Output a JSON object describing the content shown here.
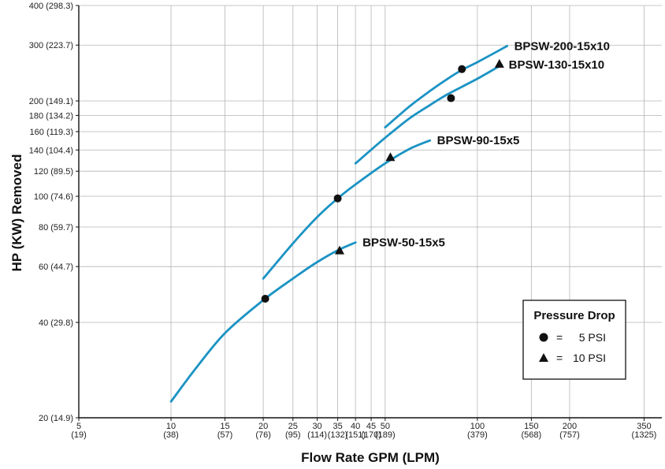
{
  "chart_data": {
    "type": "line",
    "xlabel": "Flow Rate GPM (LPM)",
    "ylabel": "HP (KW) Removed",
    "xscale": "log",
    "yscale": "log",
    "xlim": [
      5,
      400
    ],
    "ylim": [
      20,
      400
    ],
    "grid": true,
    "x_ticks": [
      {
        "value": 5,
        "label": "5",
        "sub": "(19)"
      },
      {
        "value": 10,
        "label": "10",
        "sub": "(38)"
      },
      {
        "value": 15,
        "label": "15",
        "sub": "(57)"
      },
      {
        "value": 20,
        "label": "20",
        "sub": "(76)"
      },
      {
        "value": 25,
        "label": "25",
        "sub": "(95)"
      },
      {
        "value": 30,
        "label": "30",
        "sub": "(114)"
      },
      {
        "value": 35,
        "label": "35",
        "sub": "(132)"
      },
      {
        "value": 40,
        "label": "40",
        "sub": "(151)"
      },
      {
        "value": 45,
        "label": "45",
        "sub": "(170)"
      },
      {
        "value": 50,
        "label": "50",
        "sub": "(189)"
      },
      {
        "value": 100,
        "label": "100",
        "sub": "(379)"
      },
      {
        "value": 150,
        "label": "150",
        "sub": "(568)"
      },
      {
        "value": 200,
        "label": "200",
        "sub": "(757)"
      },
      {
        "value": 350,
        "label": "350",
        "sub": "(1325)"
      }
    ],
    "y_ticks": [
      {
        "value": 20,
        "label": "20 (14.9)"
      },
      {
        "value": 40,
        "label": "40 (29.8)"
      },
      {
        "value": 60,
        "label": "60 (44.7)"
      },
      {
        "value": 80,
        "label": "80 (59.7)"
      },
      {
        "value": 100,
        "label": "100 (74.6)"
      },
      {
        "value": 120,
        "label": "120 (89.5)"
      },
      {
        "value": 140,
        "label": "140 (104.4)"
      },
      {
        "value": 160,
        "label": "160 (119.3)"
      },
      {
        "value": 180,
        "label": "180 (134.2)"
      },
      {
        "value": 200,
        "label": "200 (149.1)"
      },
      {
        "value": 300,
        "label": "300 (223.7)"
      },
      {
        "value": 400,
        "label": "400 (298.3)"
      }
    ],
    "series": [
      {
        "name": "BPSW-50-15x5",
        "color": "#1b93c4",
        "x": [
          10,
          12,
          15,
          20,
          25,
          30,
          35,
          40
        ],
        "y": [
          22.5,
          28.5,
          37,
          47,
          55,
          62,
          67.5,
          71.5
        ],
        "markers": [
          {
            "x": 20.3,
            "y": 47.5,
            "shape": "circle"
          },
          {
            "x": 35.5,
            "y": 67.5,
            "shape": "triangle"
          }
        ]
      },
      {
        "name": "BPSW-90-15x5",
        "color": "#1b93c4",
        "x": [
          20,
          25,
          30,
          35,
          40,
          50,
          60,
          70
        ],
        "y": [
          55,
          71,
          86,
          98.5,
          109,
          127,
          141,
          150
        ],
        "markers": [
          {
            "x": 35,
            "y": 98.5,
            "shape": "circle"
          },
          {
            "x": 52,
            "y": 133,
            "shape": "triangle"
          }
        ]
      },
      {
        "name": "BPSW-130-15x10",
        "color": "#1b93c4",
        "x": [
          40,
          50,
          60,
          70,
          80,
          100,
          120
        ],
        "y": [
          127,
          153,
          176,
          194,
          210,
          235,
          260
        ],
        "markers": [
          {
            "x": 82,
            "y": 204,
            "shape": "circle"
          },
          {
            "x": 118,
            "y": 262,
            "shape": "triangle"
          }
        ]
      },
      {
        "name": "BPSW-200-15x10",
        "color": "#1b93c4",
        "x": [
          50,
          60,
          70,
          80,
          90,
          100,
          125
        ],
        "y": [
          165,
          192,
          215,
          235,
          252,
          265,
          298
        ],
        "markers": [
          {
            "x": 89,
            "y": 252,
            "shape": "circle"
          }
        ]
      }
    ],
    "legend": {
      "title": "Pressure Drop",
      "placement": "bottom-right",
      "items": [
        {
          "marker": "circle",
          "eq": "=",
          "text": "5 PSI"
        },
        {
          "marker": "triangle",
          "eq": "=",
          "text": "10 PSI"
        }
      ]
    }
  }
}
